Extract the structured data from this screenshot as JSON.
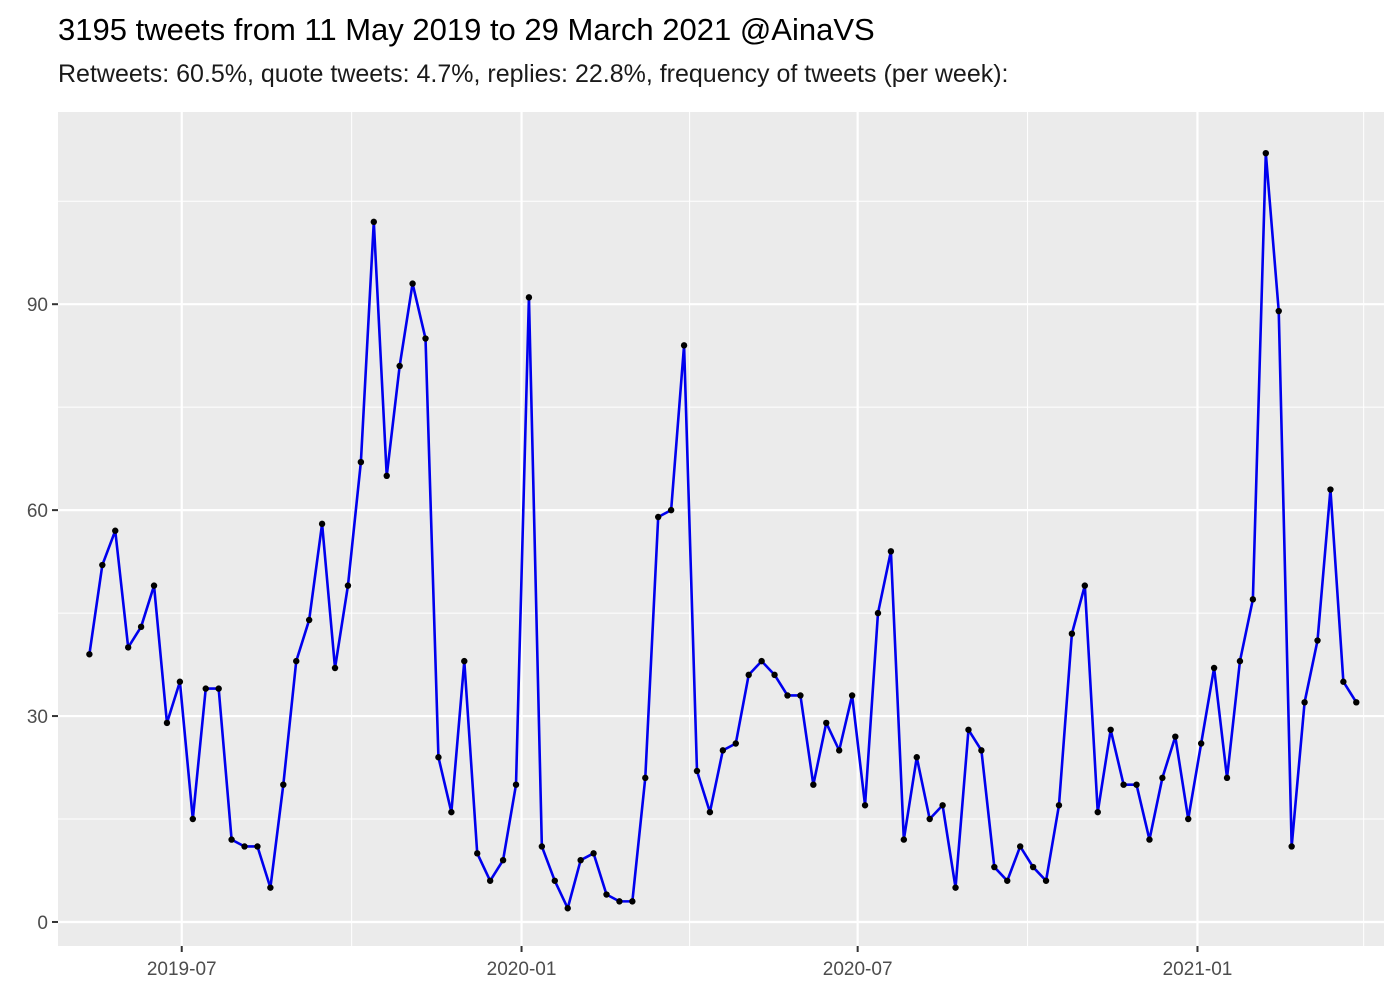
{
  "title": "3195 tweets from 11 May 2019 to 29 March 2021 @AinaVS",
  "subtitle": "Retweets: 60.5%, quote tweets: 4.7%, replies: 22.8%, frequency of tweets (per week):",
  "chart_data": {
    "type": "line",
    "title": "3195 tweets from 11 May 2019 to 29 March 2021 @AinaVS",
    "subtitle": "Retweets: 60.5%, quote tweets: 4.7%, replies: 22.8%, frequency of tweets (per week):",
    "xlabel": "",
    "ylabel": "",
    "xlim": [
      "2019-04-25",
      "2021-04-12"
    ],
    "ylim": [
      -3.5,
      118
    ],
    "grid": true,
    "legend": "none",
    "line_color": "#0000ee",
    "point_color": "#000000",
    "panel_background": "#ebebeb",
    "x_ticks": [
      {
        "date": "2019-07-01",
        "label": "2019-07"
      },
      {
        "date": "2020-01-01",
        "label": "2020-01"
      },
      {
        "date": "2020-07-01",
        "label": "2020-07"
      },
      {
        "date": "2021-01-01",
        "label": "2021-01"
      }
    ],
    "x_minor_ticks": [
      "2019-10-01",
      "2020-04-01",
      "2020-10-01",
      "2021-04-01"
    ],
    "y_ticks": [
      0,
      30,
      60,
      90
    ],
    "y_minor_ticks": [
      15,
      45,
      75,
      105
    ],
    "series": [
      {
        "x": [
          "2019-05-12",
          "2019-05-19",
          "2019-05-26",
          "2019-06-02",
          "2019-06-09",
          "2019-06-16",
          "2019-06-23",
          "2019-06-30",
          "2019-07-07",
          "2019-07-14",
          "2019-07-21",
          "2019-07-28",
          "2019-08-04",
          "2019-08-11",
          "2019-08-18",
          "2019-08-25",
          "2019-09-01",
          "2019-09-08",
          "2019-09-15",
          "2019-09-22",
          "2019-09-29",
          "2019-10-06",
          "2019-10-13",
          "2019-10-20",
          "2019-10-27",
          "2019-11-03",
          "2019-11-10",
          "2019-11-17",
          "2019-11-24",
          "2019-12-01",
          "2019-12-08",
          "2019-12-15",
          "2019-12-22",
          "2019-12-29",
          "2020-01-05",
          "2020-01-12",
          "2020-01-19",
          "2020-01-26",
          "2020-02-02",
          "2020-02-09",
          "2020-02-16",
          "2020-02-23",
          "2020-03-01",
          "2020-03-08",
          "2020-03-15",
          "2020-03-22",
          "2020-03-29",
          "2020-04-05",
          "2020-04-12",
          "2020-04-19",
          "2020-04-26",
          "2020-05-03",
          "2020-05-10",
          "2020-05-17",
          "2020-05-24",
          "2020-05-31",
          "2020-06-07",
          "2020-06-14",
          "2020-06-21",
          "2020-06-28",
          "2020-07-05",
          "2020-07-12",
          "2020-07-19",
          "2020-07-26",
          "2020-08-02",
          "2020-08-09",
          "2020-08-16",
          "2020-08-23",
          "2020-08-30",
          "2020-09-06",
          "2020-09-13",
          "2020-09-20",
          "2020-09-27",
          "2020-10-04",
          "2020-10-11",
          "2020-10-18",
          "2020-10-25",
          "2020-11-01",
          "2020-11-08",
          "2020-11-15",
          "2020-11-22",
          "2020-11-29",
          "2020-12-06",
          "2020-12-13",
          "2020-12-20",
          "2020-12-27",
          "2021-01-03",
          "2021-01-10",
          "2021-01-17",
          "2021-01-24",
          "2021-01-31",
          "2021-02-07",
          "2021-02-14",
          "2021-02-21",
          "2021-02-28",
          "2021-03-07",
          "2021-03-14",
          "2021-03-21",
          "2021-03-28"
        ],
        "y": [
          39,
          52,
          57,
          40,
          43,
          49,
          29,
          35,
          15,
          34,
          34,
          12,
          11,
          11,
          5,
          20,
          38,
          44,
          58,
          37,
          49,
          67,
          102,
          65,
          81,
          93,
          85,
          24,
          16,
          38,
          10,
          6,
          9,
          20,
          91,
          11,
          6,
          2,
          9,
          10,
          4,
          3,
          3,
          21,
          59,
          60,
          84,
          22,
          16,
          25,
          26,
          36,
          38,
          36,
          33,
          33,
          20,
          29,
          25,
          33,
          17,
          45,
          54,
          12,
          24,
          15,
          17,
          5,
          28,
          25,
          8,
          6,
          11,
          8,
          6,
          17,
          42,
          49,
          16,
          28,
          20,
          20,
          12,
          21,
          27,
          15,
          26,
          37,
          21,
          38,
          47,
          112,
          89,
          11,
          32,
          41,
          63,
          35,
          32
        ]
      }
    ]
  }
}
